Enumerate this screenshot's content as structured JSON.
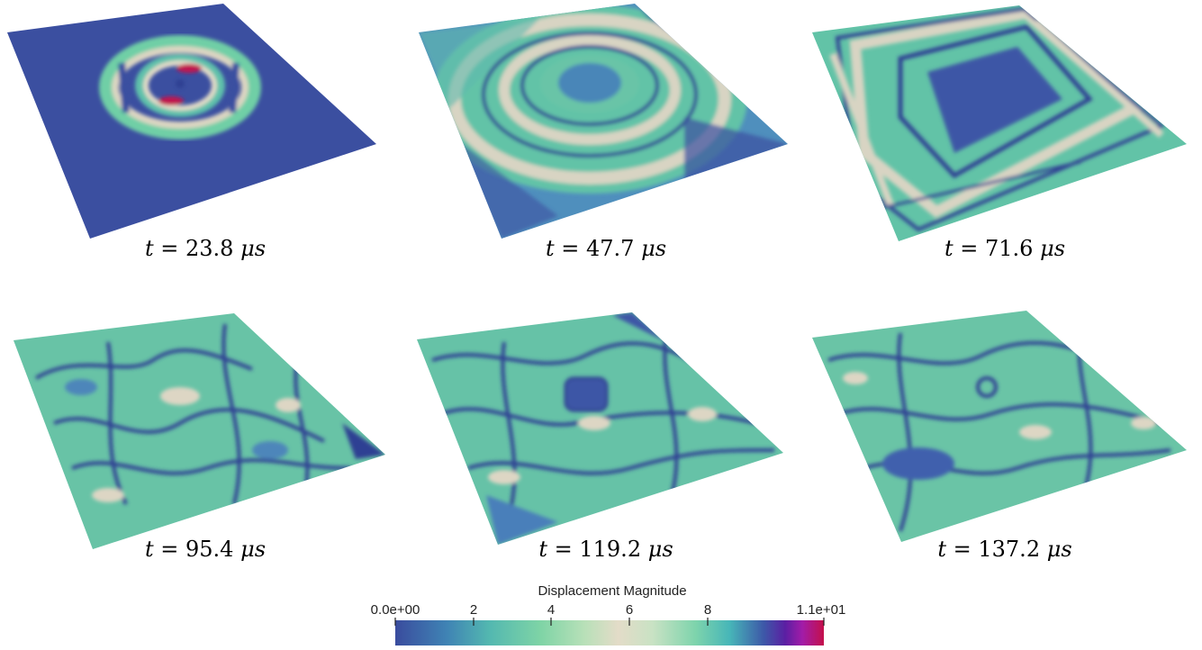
{
  "panels": [
    {
      "time_label": "23.8",
      "unit": "μs"
    },
    {
      "time_label": "47.7",
      "unit": "μs"
    },
    {
      "time_label": "71.6",
      "unit": "μs"
    },
    {
      "time_label": "95.4",
      "unit": "μs"
    },
    {
      "time_label": "119.2",
      "unit": "μs"
    },
    {
      "time_label": "137.2",
      "unit": "μs"
    }
  ],
  "caption_prefix": "t =",
  "colorbar": {
    "title": "Displacement Magnitude",
    "tick_labels": [
      "0.0e+00",
      "2",
      "4",
      "6",
      "8",
      "1.1e+01"
    ],
    "tick_values": [
      0,
      2,
      4,
      6,
      8,
      11
    ],
    "range": [
      0,
      11
    ]
  },
  "colors": {
    "low": "#3b4fa0",
    "mid": "#62c3a7",
    "neutral": "#d9d5c4",
    "high": "#c0124f"
  }
}
